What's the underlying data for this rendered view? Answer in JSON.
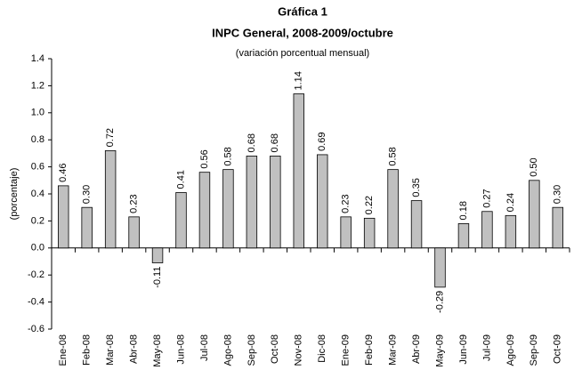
{
  "chart_data": {
    "type": "bar",
    "title": "Gráfica 1",
    "subtitle": "INPC General, 2008-2009/octubre",
    "note": "(variación porcentual mensual)",
    "y_label": "(porcentaje)",
    "categories": [
      "Ene-08",
      "Feb-08",
      "Mar-08",
      "Abr-08",
      "May-08",
      "Jun-08",
      "Jul-08",
      "Ago-08",
      "Sep-08",
      "Oct-08",
      "Nov-08",
      "Dic-08",
      "Ene-09",
      "Feb-09",
      "Mar-09",
      "Abr-09",
      "May-09",
      "Jun-09",
      "Jul-09",
      "Ago-09",
      "Sep-09",
      "Oct-09"
    ],
    "values": [
      0.46,
      0.3,
      0.72,
      0.23,
      -0.11,
      0.41,
      0.56,
      0.58,
      0.68,
      0.68,
      1.14,
      0.69,
      0.23,
      0.22,
      0.58,
      0.35,
      -0.29,
      0.18,
      0.27,
      0.24,
      0.5,
      0.3
    ],
    "value_labels": [
      "0.46",
      "0.30",
      "0.72",
      "0.23",
      "-0.11",
      "0.41",
      "0.56",
      "0.58",
      "0.68",
      "0.68",
      "1.14",
      "0.69",
      "0.23",
      "0.22",
      "0.58",
      "0.35",
      "-0.29",
      "0.18",
      "0.27",
      "0.24",
      "0.50",
      "0.30"
    ],
    "color": "#c0c0c0",
    "ylim": [
      -0.6,
      1.4
    ],
    "yticks": [
      -0.6,
      -0.4,
      -0.2,
      {
        "value": 0,
        "label": "0.0"
      },
      0.2,
      0.4,
      0.6,
      0.8,
      {
        "value": 1,
        "label": "1.0"
      },
      1.2,
      1.4
    ]
  }
}
